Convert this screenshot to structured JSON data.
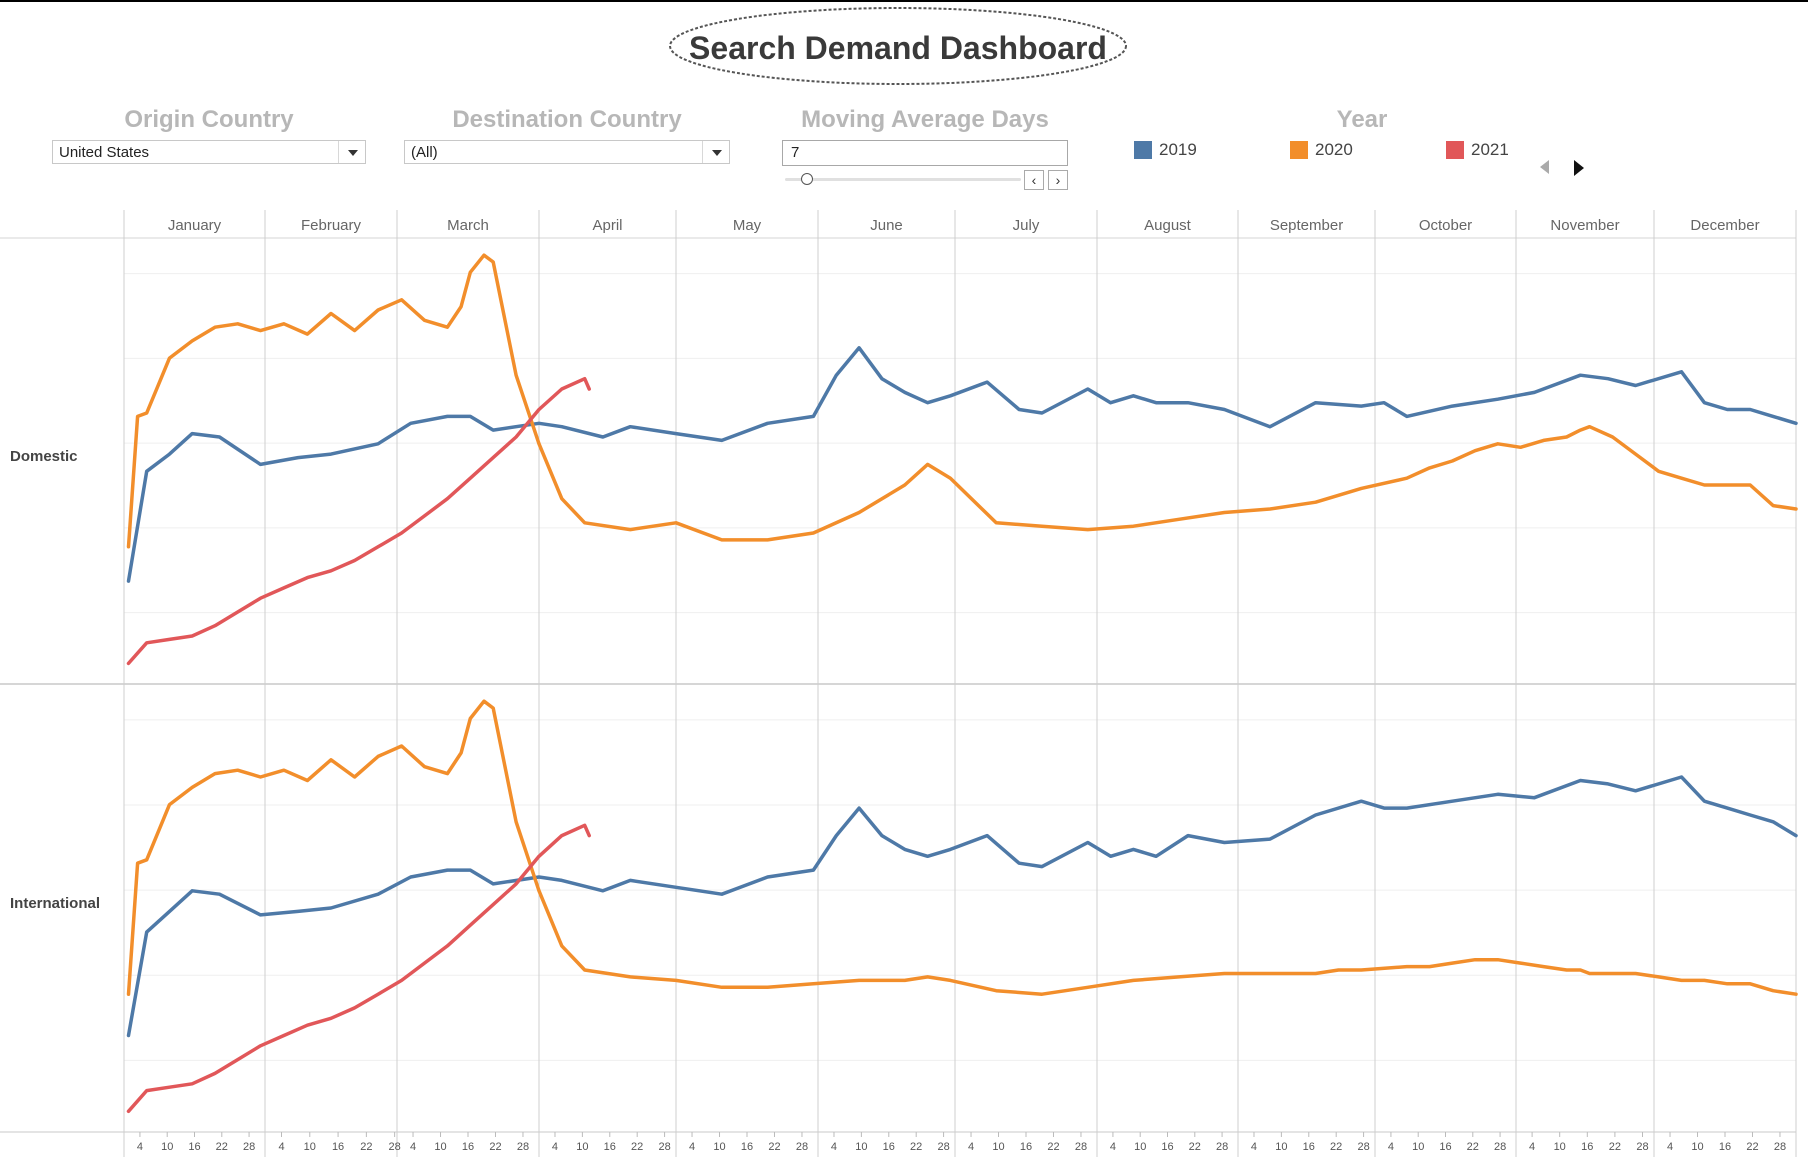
{
  "title": "Search Demand Dashboard",
  "filters": {
    "origin": {
      "label": "Origin Country",
      "value": "United States"
    },
    "destination": {
      "label": "Destination Country",
      "value": "(All)"
    },
    "moving_average": {
      "label": "Moving Average Days",
      "value": "7",
      "slider_fraction": 0.07
    }
  },
  "legend": {
    "title": "Year",
    "items": [
      {
        "label": "2019",
        "color": "#4e79a7"
      },
      {
        "label": "2020",
        "color": "#f28e2b"
      },
      {
        "label": "2021",
        "color": "#e15759"
      }
    ]
  },
  "chart_data": {
    "type": "line",
    "x_unit": "day of year",
    "months": [
      "January",
      "February",
      "March",
      "April",
      "May",
      "June",
      "July",
      "August",
      "September",
      "October",
      "November",
      "December"
    ],
    "day_ticks": [
      "4",
      "10",
      "16",
      "22",
      "28"
    ],
    "grid": true,
    "y_axis": "none (unlabeled)",
    "panels": [
      {
        "name": "Domestic",
        "series": [
          {
            "name": "2019",
            "color": "#4e79a7",
            "x": [
              1,
              5,
              10,
              15,
              21,
              30,
              38,
              45,
              55,
              62,
              70,
              75,
              80,
              90,
              95,
              104,
              110,
              120,
              130,
              140,
              150,
              155,
              160,
              165,
              170,
              175,
              180,
              188,
              195,
              200,
              210,
              215,
              220,
              225,
              232,
              240,
              250,
              260,
              270,
              275,
              280,
              290,
              300,
              308,
              318,
              324,
              330,
              340,
              345,
              350,
              355,
              360,
              365
            ],
            "y": [
              30,
              62,
              67,
              73,
              72,
              64,
              66,
              67,
              70,
              76,
              78,
              78,
              74,
              76,
              75,
              72,
              75,
              73,
              71,
              76,
              78,
              90,
              98,
              89,
              85,
              82,
              84,
              88,
              80,
              79,
              86,
              82,
              84,
              82,
              82,
              80,
              75,
              82,
              81,
              82,
              78,
              81,
              83,
              85,
              90,
              89,
              87,
              91,
              82,
              80,
              80,
              78,
              76
            ]
          },
          {
            "name": "2020",
            "color": "#f28e2b",
            "x": [
              1,
              3,
              5,
              10,
              15,
              20,
              25,
              30,
              35,
              40,
              45,
              50,
              55,
              60,
              65,
              70,
              73,
              75,
              78,
              80,
              85,
              90,
              95,
              100,
              110,
              120,
              130,
              140,
              150,
              160,
              170,
              175,
              180,
              190,
              200,
              210,
              220,
              230,
              240,
              250,
              260,
              265,
              270,
              280,
              285,
              290,
              295,
              300,
              305,
              310,
              315,
              318,
              320,
              325,
              330,
              335,
              340,
              345,
              350,
              355,
              360,
              365
            ],
            "y": [
              40,
              78,
              79,
              95,
              100,
              104,
              105,
              103,
              105,
              102,
              108,
              103,
              109,
              112,
              106,
              104,
              110,
              120,
              125,
              123,
              90,
              70,
              54,
              47,
              45,
              47,
              42,
              42,
              44,
              50,
              58,
              64,
              60,
              47,
              46,
              45,
              46,
              48,
              50,
              51,
              53,
              55,
              57,
              60,
              63,
              65,
              68,
              70,
              69,
              71,
              72,
              74,
              75,
              72,
              67,
              62,
              60,
              58,
              58,
              58,
              52,
              51
            ]
          },
          {
            "name": "2021",
            "color": "#e15759",
            "x": [
              1,
              5,
              10,
              15,
              20,
              25,
              30,
              35,
              40,
              45,
              50,
              55,
              60,
              65,
              70,
              75,
              80,
              85,
              90,
              95,
              100,
              101
            ],
            "y": [
              6,
              12,
              13,
              14,
              17,
              21,
              25,
              28,
              31,
              33,
              36,
              40,
              44,
              49,
              54,
              60,
              66,
              72,
              80,
              86,
              89,
              86
            ]
          }
        ]
      },
      {
        "name": "International",
        "series": [
          {
            "name": "2019",
            "color": "#4e79a7",
            "x": [
              1,
              5,
              10,
              15,
              21,
              30,
              38,
              45,
              55,
              62,
              70,
              75,
              80,
              90,
              95,
              104,
              110,
              120,
              130,
              140,
              150,
              155,
              160,
              165,
              170,
              175,
              180,
              188,
              195,
              200,
              210,
              215,
              220,
              225,
              232,
              240,
              250,
              260,
              270,
              275,
              280,
              290,
              300,
              308,
              318,
              324,
              330,
              340,
              345,
              350,
              355,
              360,
              365
            ],
            "y": [
              28,
              58,
              64,
              70,
              69,
              63,
              64,
              65,
              69,
              74,
              76,
              76,
              72,
              74,
              73,
              70,
              73,
              71,
              69,
              74,
              76,
              86,
              94,
              86,
              82,
              80,
              82,
              86,
              78,
              77,
              84,
              80,
              82,
              80,
              86,
              84,
              85,
              92,
              96,
              94,
              94,
              96,
              98,
              97,
              102,
              101,
              99,
              103,
              96,
              94,
              92,
              90,
              86
            ]
          },
          {
            "name": "2020",
            "color": "#f28e2b",
            "x": [
              1,
              3,
              5,
              10,
              15,
              20,
              25,
              30,
              35,
              40,
              45,
              50,
              55,
              60,
              65,
              70,
              73,
              75,
              78,
              80,
              85,
              90,
              95,
              100,
              110,
              120,
              130,
              140,
              150,
              160,
              170,
              175,
              180,
              190,
              200,
              210,
              220,
              230,
              240,
              250,
              260,
              265,
              270,
              280,
              285,
              290,
              295,
              300,
              305,
              310,
              315,
              318,
              320,
              325,
              330,
              335,
              340,
              345,
              350,
              355,
              360,
              365
            ],
            "y": [
              40,
              78,
              79,
              95,
              100,
              104,
              105,
              103,
              105,
              102,
              108,
              103,
              109,
              112,
              106,
              104,
              110,
              120,
              125,
              123,
              90,
              70,
              54,
              47,
              45,
              44,
              42,
              42,
              43,
              44,
              44,
              45,
              44,
              41,
              40,
              42,
              44,
              45,
              46,
              46,
              46,
              47,
              47,
              48,
              48,
              49,
              50,
              50,
              49,
              48,
              47,
              47,
              46,
              46,
              46,
              45,
              44,
              44,
              43,
              43,
              41,
              40
            ]
          },
          {
            "name": "2021",
            "color": "#e15759",
            "x": [
              1,
              5,
              10,
              15,
              20,
              25,
              30,
              35,
              40,
              45,
              50,
              55,
              60,
              65,
              70,
              75,
              80,
              85,
              90,
              95,
              100,
              101
            ],
            "y": [
              6,
              12,
              13,
              14,
              17,
              21,
              25,
              28,
              31,
              33,
              36,
              40,
              44,
              49,
              54,
              60,
              66,
              72,
              80,
              86,
              89,
              86
            ]
          }
        ]
      }
    ]
  }
}
